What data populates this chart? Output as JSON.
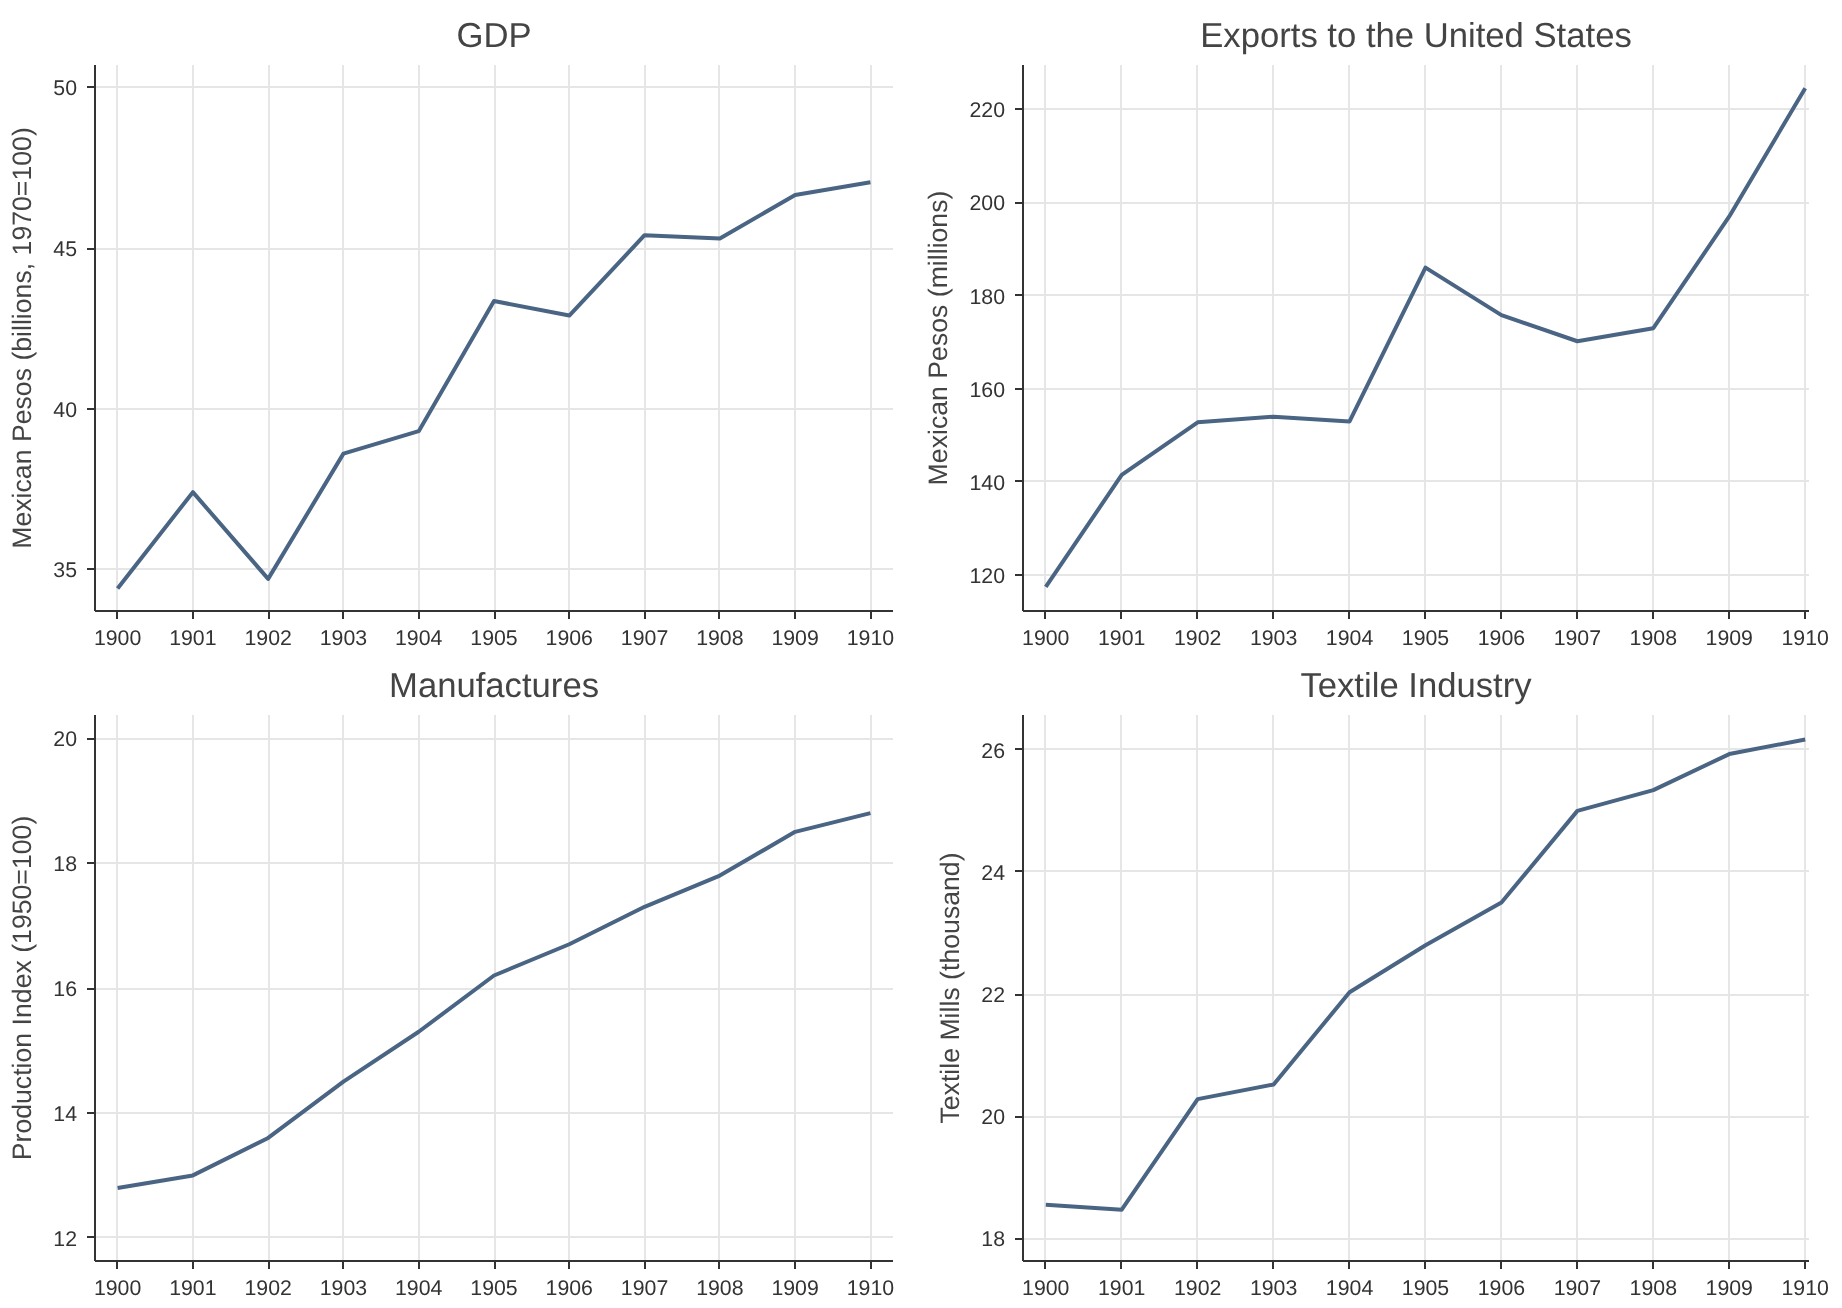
{
  "chart_data": [
    {
      "type": "line",
      "title": "GDP",
      "ylabel": "Mexican Pesos (billions, 1970=100)",
      "x": [
        1900,
        1901,
        1902,
        1903,
        1904,
        1905,
        1906,
        1907,
        1908,
        1909,
        1910
      ],
      "values": [
        34.4,
        37.4,
        34.7,
        38.6,
        39.3,
        43.35,
        42.9,
        45.4,
        45.3,
        46.65,
        47.05
      ],
      "color": "#4a6584",
      "xlim": [
        1899.7,
        1910.3
      ],
      "xticks": [
        1900,
        1901,
        1902,
        1903,
        1904,
        1905,
        1906,
        1907,
        1908,
        1909,
        1910
      ],
      "ylim": [
        33.7,
        50.7
      ],
      "yticks": [
        35,
        40,
        45,
        50
      ],
      "grid": true
    },
    {
      "type": "line",
      "title": "Exports to the United States",
      "ylabel": "Mexican Pesos (millions)",
      "x": [
        1900,
        1901,
        1902,
        1903,
        1904,
        1905,
        1906,
        1907,
        1908,
        1909,
        1910
      ],
      "values": [
        117.5,
        141.5,
        152.8,
        154,
        153,
        186,
        175.8,
        170.2,
        173,
        197,
        224.5
      ],
      "color": "#4a6584",
      "xlim": [
        1899.7,
        1910.05
      ],
      "xticks": [
        1900,
        1901,
        1902,
        1903,
        1904,
        1905,
        1906,
        1907,
        1908,
        1909,
        1910
      ],
      "ylim": [
        112.3,
        229.5
      ],
      "yticks": [
        120,
        140,
        160,
        180,
        200,
        220
      ],
      "grid": true
    },
    {
      "type": "line",
      "title": "Manufactures",
      "ylabel": "Production Index (1950=100)",
      "x": [
        1900,
        1901,
        1902,
        1903,
        1904,
        1905,
        1906,
        1907,
        1908,
        1909,
        1910
      ],
      "values": [
        12.8,
        13.0,
        13.6,
        14.5,
        15.3,
        16.2,
        16.7,
        17.3,
        17.8,
        18.5,
        18.8
      ],
      "color": "#4a6584",
      "xlim": [
        1899.7,
        1910.3
      ],
      "xticks": [
        1900,
        1901,
        1902,
        1903,
        1904,
        1905,
        1906,
        1907,
        1908,
        1909,
        1910
      ],
      "ylim": [
        11.63,
        20.37
      ],
      "yticks": [
        12,
        14,
        16,
        18,
        20
      ],
      "grid": true
    },
    {
      "type": "line",
      "title": "Textile Industry",
      "ylabel": "Textile Mills (thousand)",
      "x": [
        1900,
        1901,
        1902,
        1903,
        1904,
        1905,
        1906,
        1907,
        1908,
        1909,
        1910
      ],
      "values": [
        18.55,
        18.47,
        20.28,
        20.52,
        22.03,
        22.8,
        23.5,
        25.0,
        25.34,
        25.93,
        26.17
      ],
      "color": "#4a6584",
      "xlim": [
        1899.7,
        1910.05
      ],
      "xticks": [
        1900,
        1901,
        1902,
        1903,
        1904,
        1905,
        1906,
        1907,
        1908,
        1909,
        1910
      ],
      "ylim": [
        17.63,
        26.57
      ],
      "yticks": [
        18,
        20,
        22,
        24,
        26
      ],
      "grid": true
    }
  ]
}
